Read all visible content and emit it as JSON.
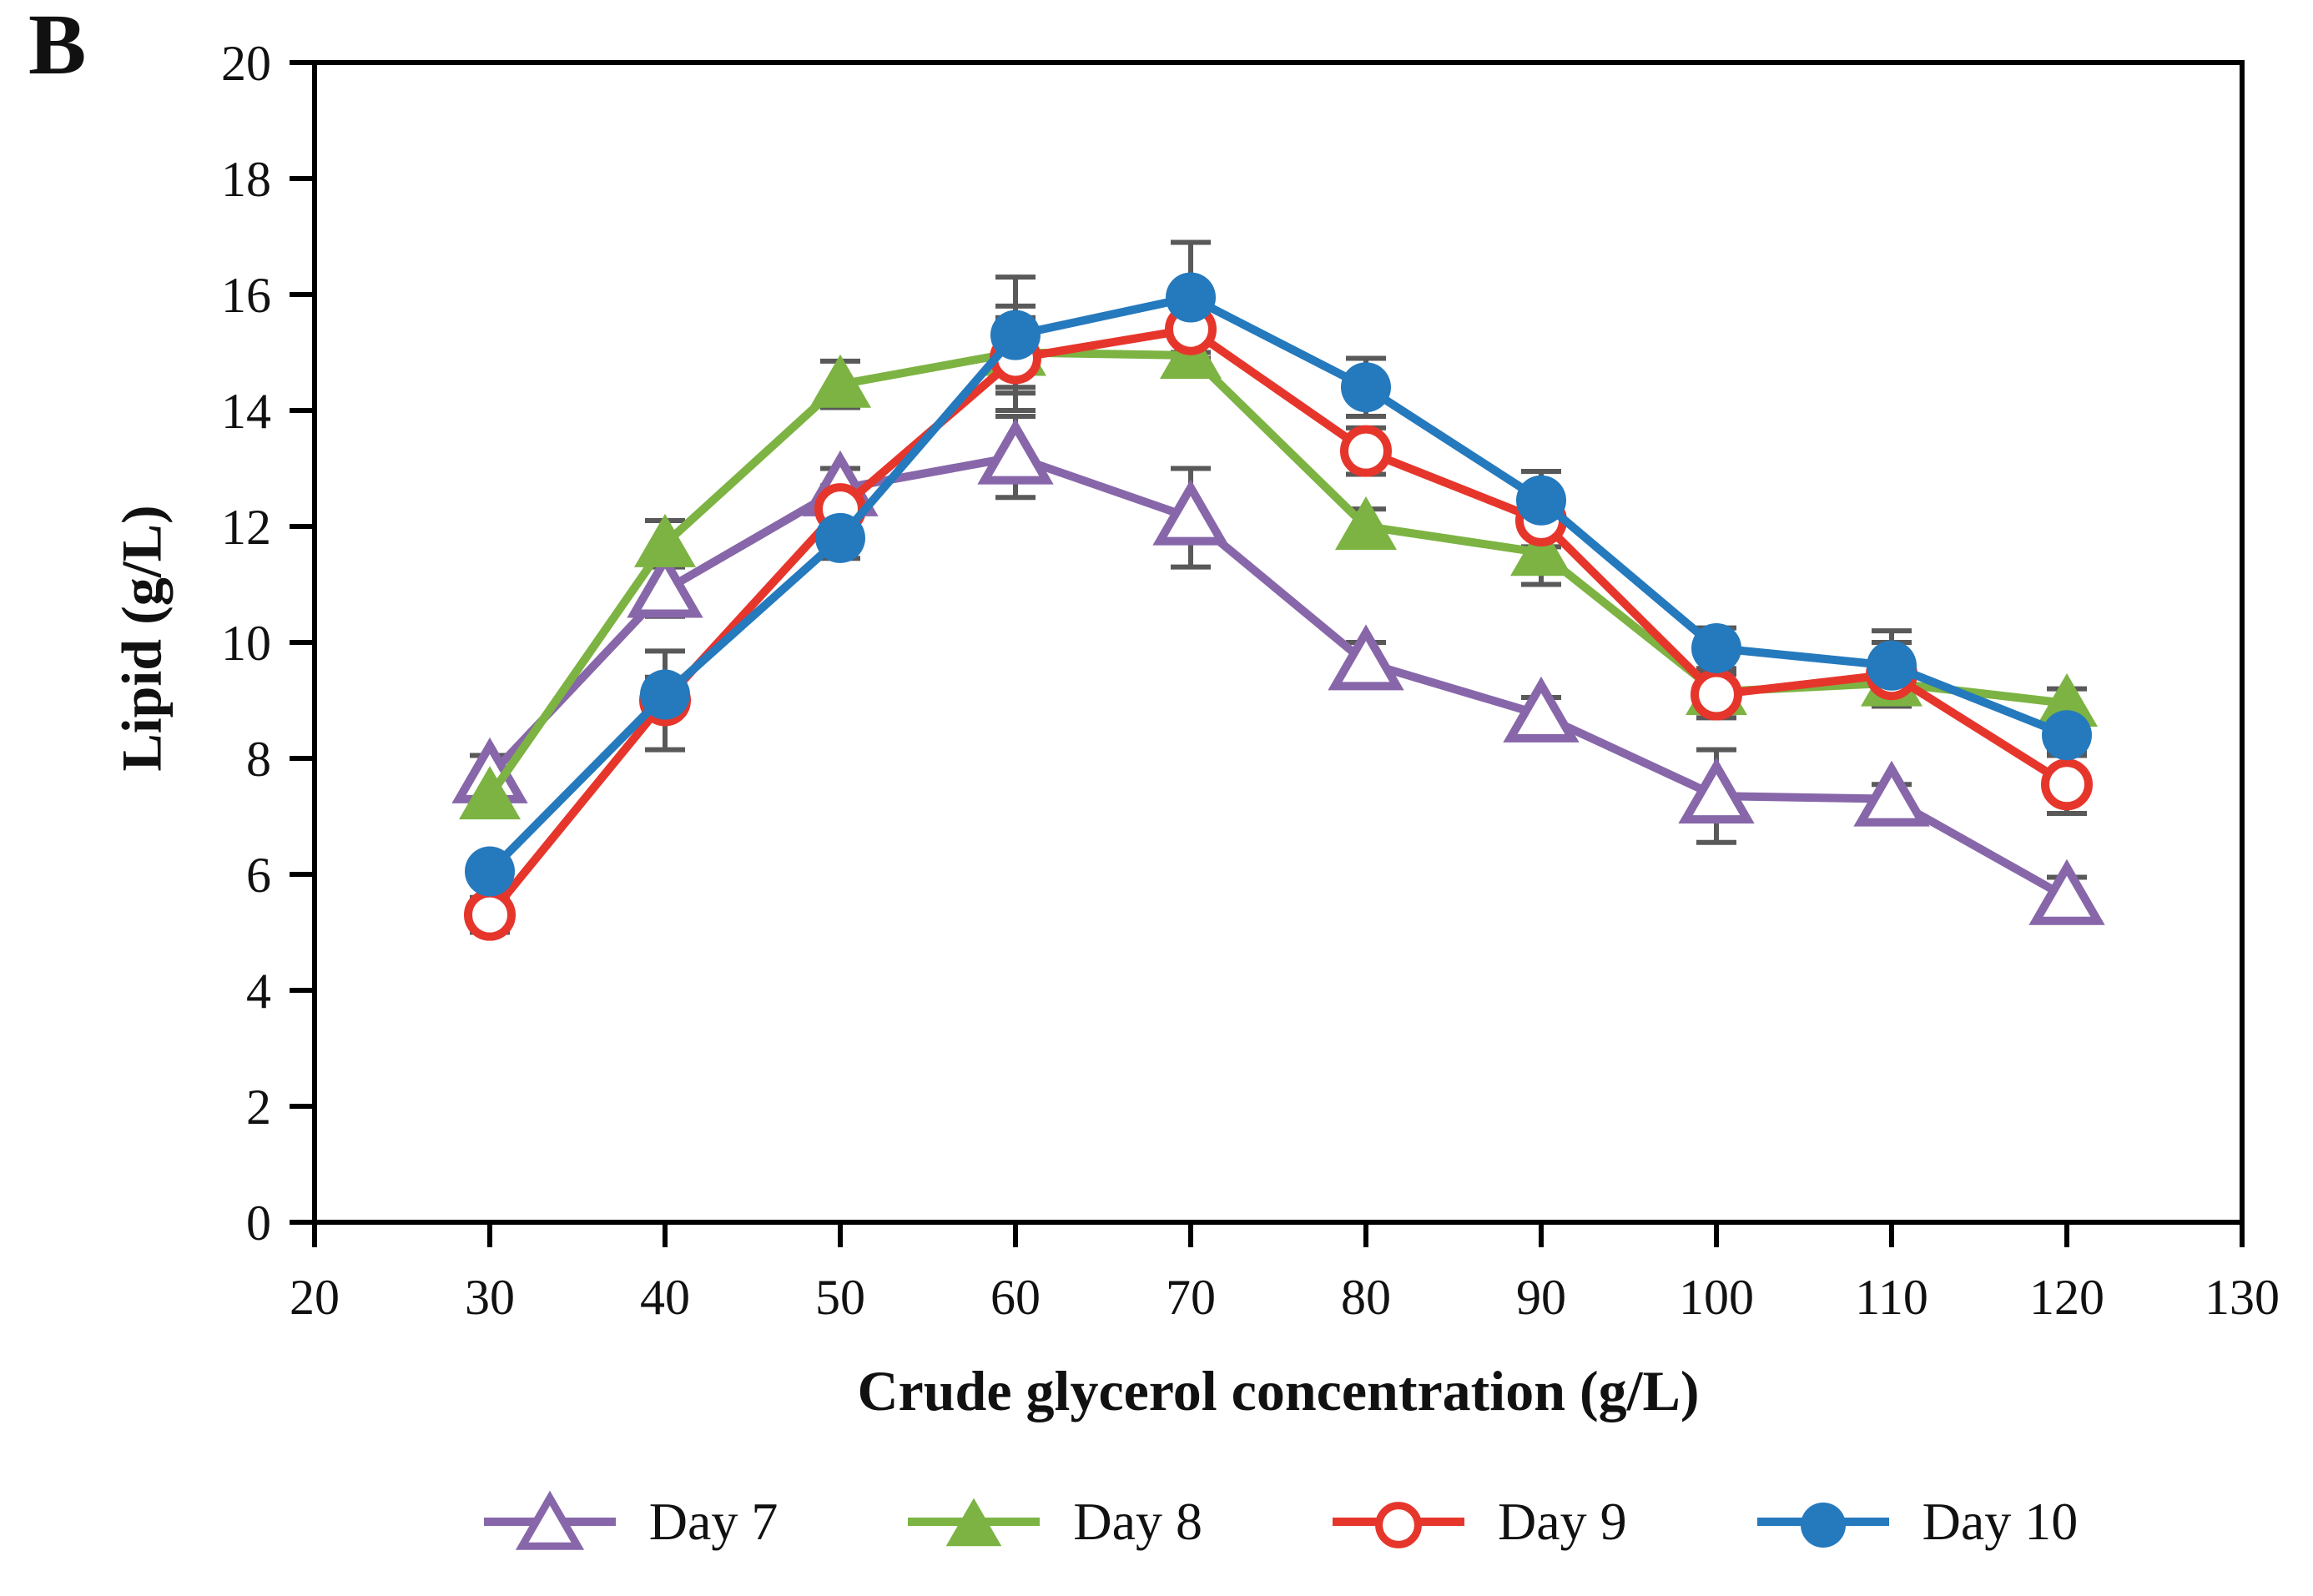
{
  "panel_label": "B",
  "axes": {
    "x_title": "Crude glycerol concentration (g/L)",
    "y_title": "Lipid (g/L)",
    "x_ticks": [
      20,
      30,
      40,
      50,
      60,
      70,
      80,
      90,
      100,
      110,
      120,
      130
    ],
    "y_ticks": [
      0,
      2,
      4,
      6,
      8,
      10,
      12,
      14,
      16,
      18,
      20
    ],
    "xlim": [
      20,
      130
    ],
    "ylim": [
      0,
      20
    ]
  },
  "chart_data": {
    "type": "line",
    "title": "",
    "xlabel": "Crude glycerol concentration (g/L)",
    "ylabel": "Lipid (g/L)",
    "xlim": [
      20,
      130
    ],
    "ylim": [
      0,
      20
    ],
    "grid": false,
    "legend_position": "bottom",
    "error_bar_color": "#595959",
    "x": [
      30,
      40,
      50,
      60,
      70,
      80,
      90,
      100,
      110,
      120
    ],
    "series": [
      {
        "name": "Day 7",
        "marker": "open-triangle",
        "color": "#8767A9",
        "values": [
          7.7,
          10.9,
          12.65,
          13.2,
          12.15,
          9.65,
          8.75,
          7.35,
          7.3,
          5.6
        ],
        "errors": [
          0.35,
          0.45,
          0.35,
          0.7,
          0.85,
          0.35,
          0.3,
          0.8,
          0.25,
          0.35
        ]
      },
      {
        "name": "Day 8",
        "marker": "filled-triangle",
        "color": "#7CB342",
        "values": [
          7.35,
          11.7,
          14.45,
          15.0,
          14.95,
          12.0,
          11.55,
          9.15,
          9.3,
          8.95
        ],
        "errors": [
          0.25,
          0.4,
          0.4,
          0.6,
          0.35,
          0.3,
          0.55,
          0.3,
          0.3,
          0.25
        ]
      },
      {
        "name": "Day 9",
        "marker": "open-circle",
        "color": "#E6362C",
        "values": [
          5.3,
          9.0,
          12.3,
          14.9,
          15.4,
          13.3,
          12.1,
          9.1,
          9.45,
          7.55
        ],
        "errors": [
          0.3,
          0.85,
          0.4,
          0.9,
          0.5,
          0.4,
          0.45,
          0.4,
          0.55,
          0.5
        ]
      },
      {
        "name": "Day 10",
        "marker": "filled-circle",
        "color": "#2579BD",
        "values": [
          6.05,
          9.1,
          11.8,
          15.3,
          15.95,
          14.4,
          12.45,
          9.9,
          9.6,
          8.4
        ],
        "errors": [
          0.2,
          0.3,
          0.35,
          1.0,
          0.95,
          0.5,
          0.5,
          0.35,
          0.6,
          0.3
        ]
      }
    ]
  }
}
